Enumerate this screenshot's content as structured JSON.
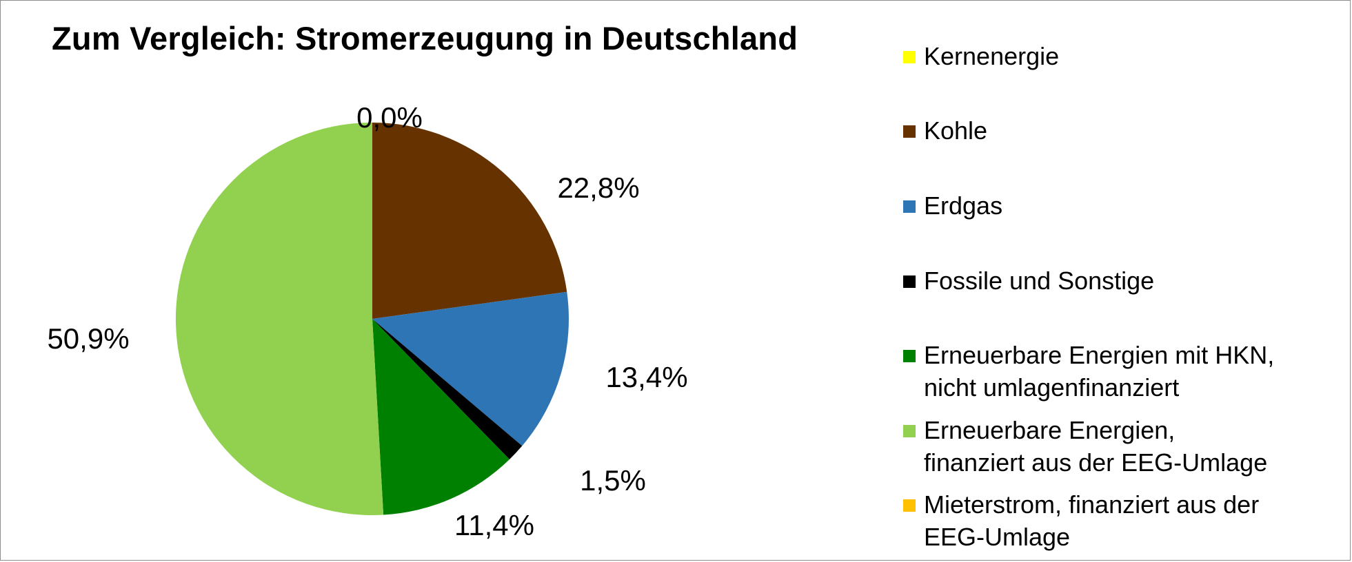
{
  "chart_data": {
    "type": "pie",
    "title": "Zum Vergleich: Stromerzeugung in Deutschland",
    "slices": [
      {
        "name": "Kernenergie",
        "value": 0.0,
        "label": "0,0%",
        "color": "#FFFF00"
      },
      {
        "name": "Kohle",
        "value": 22.8,
        "label": "22,8%",
        "color": "#663300"
      },
      {
        "name": "Erdgas",
        "value": 13.4,
        "label": "13,4%",
        "color": "#2E75B6"
      },
      {
        "name": "Fossile und Sonstige",
        "value": 1.5,
        "label": "1,5%",
        "color": "#000000"
      },
      {
        "name": "Erneuerbare Energien mit HKN,\nnicht umlagenfinanziert",
        "value": 11.4,
        "label": "11,4%",
        "color": "#008000"
      },
      {
        "name": "Erneuerbare Energien,\nfinanziert aus der EEG-Umlage",
        "value": 50.9,
        "label": "50,9%",
        "color": "#92D050"
      },
      {
        "name": "Mieterstrom, finanziert aus der\nEEG-Umlage",
        "value": 0.0,
        "label": "",
        "color": "#FFC000"
      }
    ],
    "legend_position": "right"
  }
}
